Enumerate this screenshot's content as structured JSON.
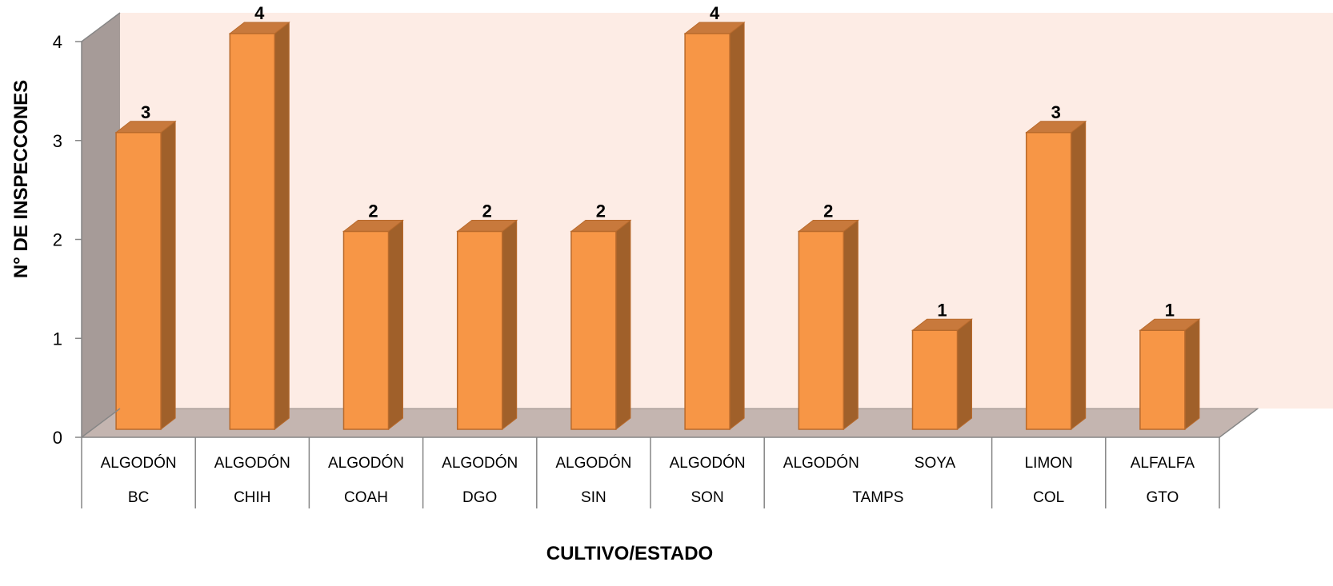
{
  "chart_data": {
    "type": "bar",
    "style": "3d-column",
    "title": "",
    "xlabel": "CULTIVO/ESTADO",
    "ylabel": "N° DE INSPECCONES",
    "ylim": [
      0,
      4
    ],
    "yticks": [
      0,
      1,
      2,
      3,
      4
    ],
    "grid": false,
    "legend": "none",
    "categories": [
      {
        "cultivo": "ALGODÓN",
        "estado": "BC"
      },
      {
        "cultivo": "ALGODÓN",
        "estado": "CHIH"
      },
      {
        "cultivo": "ALGODÓN",
        "estado": "COAH"
      },
      {
        "cultivo": "ALGODÓN",
        "estado": "DGO"
      },
      {
        "cultivo": "ALGODÓN",
        "estado": "SIN"
      },
      {
        "cultivo": "ALGODÓN",
        "estado": "SON"
      },
      {
        "cultivo": "ALGODÓN",
        "estado": "TAMPS"
      },
      {
        "cultivo": "SOYA",
        "estado": "TAMPS"
      },
      {
        "cultivo": "LIMON",
        "estado": "COL"
      },
      {
        "cultivo": "ALFALFA",
        "estado": "GTO"
      }
    ],
    "estado_groups": [
      {
        "label": "BC",
        "count": 1
      },
      {
        "label": "CHIH",
        "count": 1
      },
      {
        "label": "COAH",
        "count": 1
      },
      {
        "label": "DGO",
        "count": 1
      },
      {
        "label": "SIN",
        "count": 1
      },
      {
        "label": "SON",
        "count": 1
      },
      {
        "label": "TAMPS",
        "count": 2
      },
      {
        "label": "COL",
        "count": 1
      },
      {
        "label": "GTO",
        "count": 1
      }
    ],
    "values": [
      3,
      4,
      2,
      2,
      2,
      4,
      2,
      1,
      3,
      1
    ],
    "data_labels": [
      "3",
      "4",
      "2",
      "2",
      "2",
      "4",
      "2",
      "1",
      "3",
      "1"
    ],
    "colors": {
      "bar_front": "#F79646",
      "bar_side": "#A0602A",
      "bar_top": "#C8793C",
      "bar_edge": "#B86A2C",
      "back_wall": "#FDECE5",
      "side_wall": "#A69B98",
      "floor": "#C4B5B0",
      "axis": "#868686",
      "text": "#000000"
    }
  }
}
